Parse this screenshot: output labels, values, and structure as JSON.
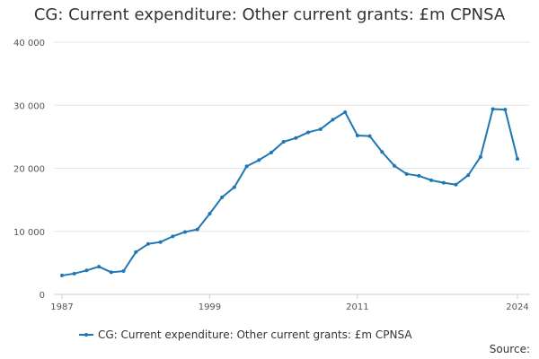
{
  "chart_data": {
    "type": "line",
    "title": "CG: Current expenditure: Other current grants: £m CPNSA",
    "xlabel": "",
    "ylabel": "",
    "xlim": [
      1987,
      2024
    ],
    "ylim": [
      0,
      40000
    ],
    "x_ticks": [
      1987,
      1999,
      2011,
      2024
    ],
    "x_tick_labels": [
      "1987",
      "1999",
      "2011",
      "2024"
    ],
    "y_ticks": [
      0,
      10000,
      20000,
      30000,
      40000
    ],
    "y_tick_labels": [
      "0",
      "10 000",
      "20 000",
      "30 000",
      "40 000"
    ],
    "grid": true,
    "legend_position": "bottom",
    "series": [
      {
        "name": "CG: Current expenditure: Other current grants: £m CPNSA",
        "color": "#1f77b4",
        "x": [
          1987,
          1988,
          1989,
          1990,
          1991,
          1992,
          1993,
          1994,
          1995,
          1996,
          1997,
          1998,
          1999,
          2000,
          2001,
          2002,
          2003,
          2004,
          2005,
          2006,
          2007,
          2008,
          2009,
          2010,
          2011,
          2012,
          2013,
          2014,
          2015,
          2016,
          2017,
          2018,
          2019,
          2020,
          2021,
          2022,
          2023,
          2024
        ],
        "values": [
          3000,
          3300,
          3800,
          4400,
          3500,
          3700,
          6700,
          8000,
          8300,
          9200,
          9900,
          10300,
          12800,
          15400,
          17000,
          20300,
          21300,
          22500,
          24200,
          24800,
          25700,
          26200,
          27700,
          28900,
          25200,
          25100,
          22600,
          20400,
          19100,
          18800,
          18100,
          17700,
          17400,
          18900,
          21800,
          29400,
          29300,
          21500
        ]
      }
    ]
  },
  "legend": {
    "label": "CG: Current expenditure: Other current grants: £m CPNSA"
  },
  "footer": {
    "source_label": "Source:"
  }
}
